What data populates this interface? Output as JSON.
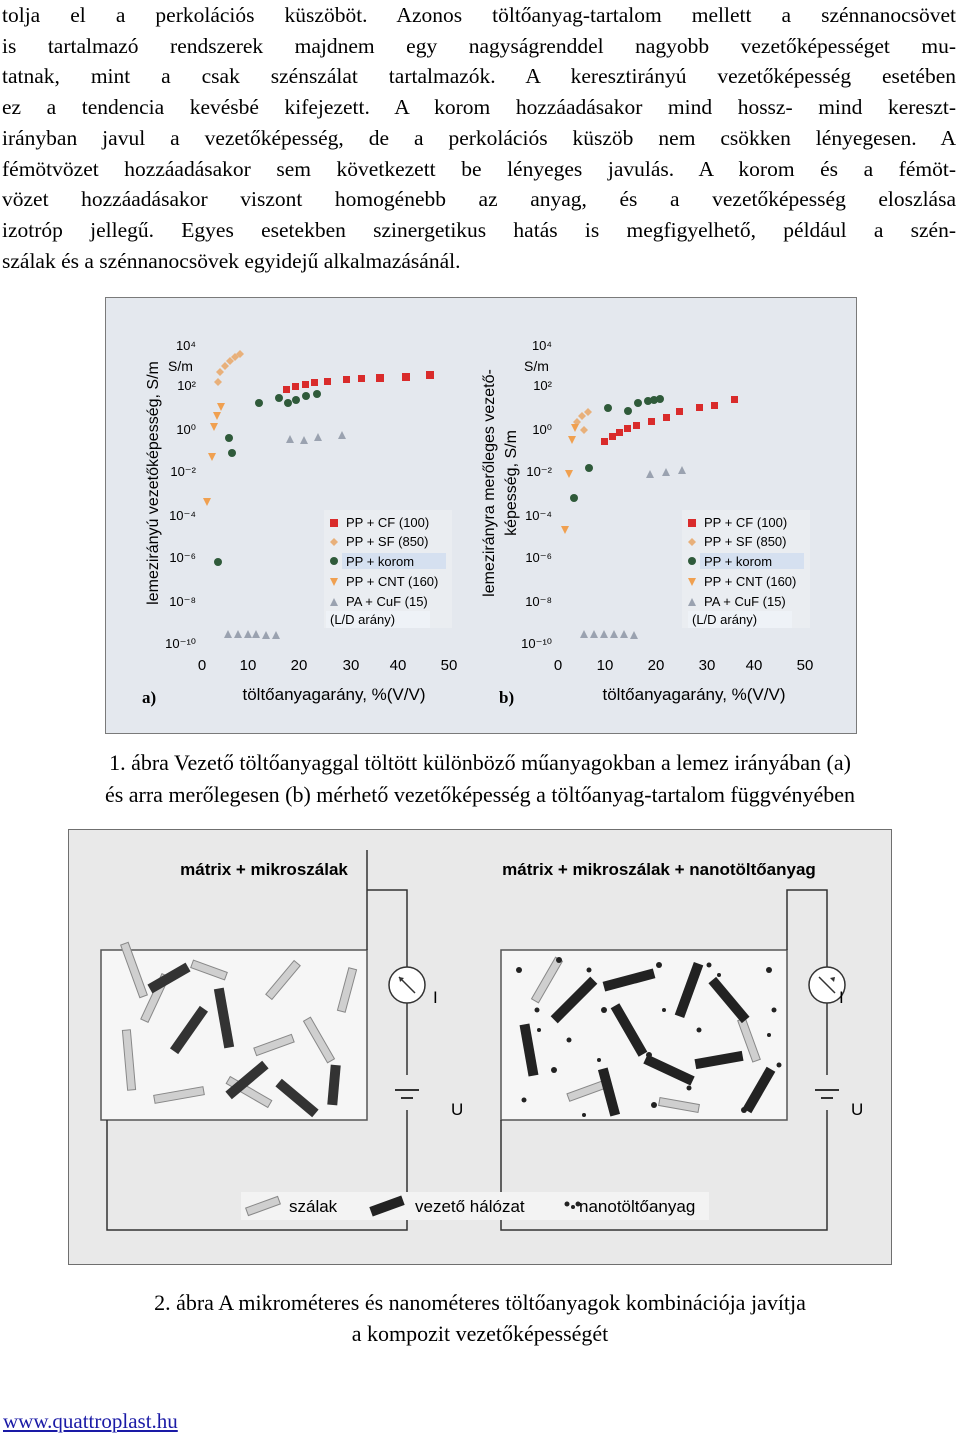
{
  "paragraph": {
    "lines": [
      "tolja el a perkolációs küszöböt. Azonos töltőanyag-tartalom mellett a szénnanocsövet",
      "is tartalmazó rendszerek majdnem egy nagyságrenddel nagyobb vezetőképességet mu-",
      "tatnak, mint a csak szénszálat tartalmazók. A keresztirányú vezetőképesség esetében",
      "ez a tendencia kevésbé kifejezett. A korom hozzáadásakor mind hossz- mind kereszt-",
      "irányban javul a vezetőképesség, de a perkolációs küszöb nem csökken lényegesen. A",
      "fémötvözet hozzáadásakor sem következett be lényeges javulás. A korom és a fémöt-",
      "vözet hozzáadásakor viszont homogénebb az anyag, és a vezetőképesség eloszlása",
      "izotróp jellegű. Egyes esetekben szinergetikus hatás is megfigyelhető, például a szén-",
      "szálak és a szénnanocsövek egyidejű alkalmazásánál."
    ]
  },
  "figure1": {
    "caption_line1": "1. ábra Vezető töltőanyaggal töltött különböző műanyagokban a lemez irányában (a)",
    "caption_line2": "és arra merőlegesen (b) mérhető vezetőképesség a töltőanyag-tartalom függvényében",
    "legend": [
      "PP + CF (100)",
      "PP + SF (850)",
      "PP + korom",
      "PP + CNT (160)",
      "PA + CuF (15)"
    ],
    "legend_note": "(L/D arány)",
    "unit": "S/m",
    "x_ticks": [
      "0",
      "10",
      "20",
      "30",
      "40",
      "50"
    ],
    "y_ticks": [
      "10⁴",
      "10²",
      "10⁰",
      "10⁻²",
      "10⁻⁴",
      "10⁻⁶",
      "10⁻⁸",
      "10⁻¹⁰"
    ],
    "xlabel": "töltőanyagarány, %(V/V)",
    "panel_a_label": "a)",
    "panel_b_label": "b)",
    "panel_a_ylabel": "lemezirányú vezetőképesség, S/m",
    "panel_b_ylabel_1": "lemezirányra merőleges vezető-",
    "panel_b_ylabel_2": "képesség, S/m",
    "colors": {
      "cf": "#d92b2b",
      "sf": "#e8b07a",
      "korom": "#2f5a3a",
      "cnt": "#f0a050",
      "cuf": "#9aa2b0"
    }
  },
  "figure2": {
    "title_left": "mátrix + mikroszálak",
    "title_right": "mátrix + mikroszálak + nanotöltőanyag",
    "meter_label": "I",
    "source_label": "U",
    "legend_fibers": "szálak",
    "legend_network": "vezető hálózat",
    "legend_nano": "nanotöltőanyag",
    "caption_line1": "2. ábra A mikrométeres és nanométeres töltőanyagok kombinációja javítja",
    "caption_line2": "a kompozit vezetőképességét"
  },
  "footer": {
    "link": "www.quattroplast.hu"
  }
}
